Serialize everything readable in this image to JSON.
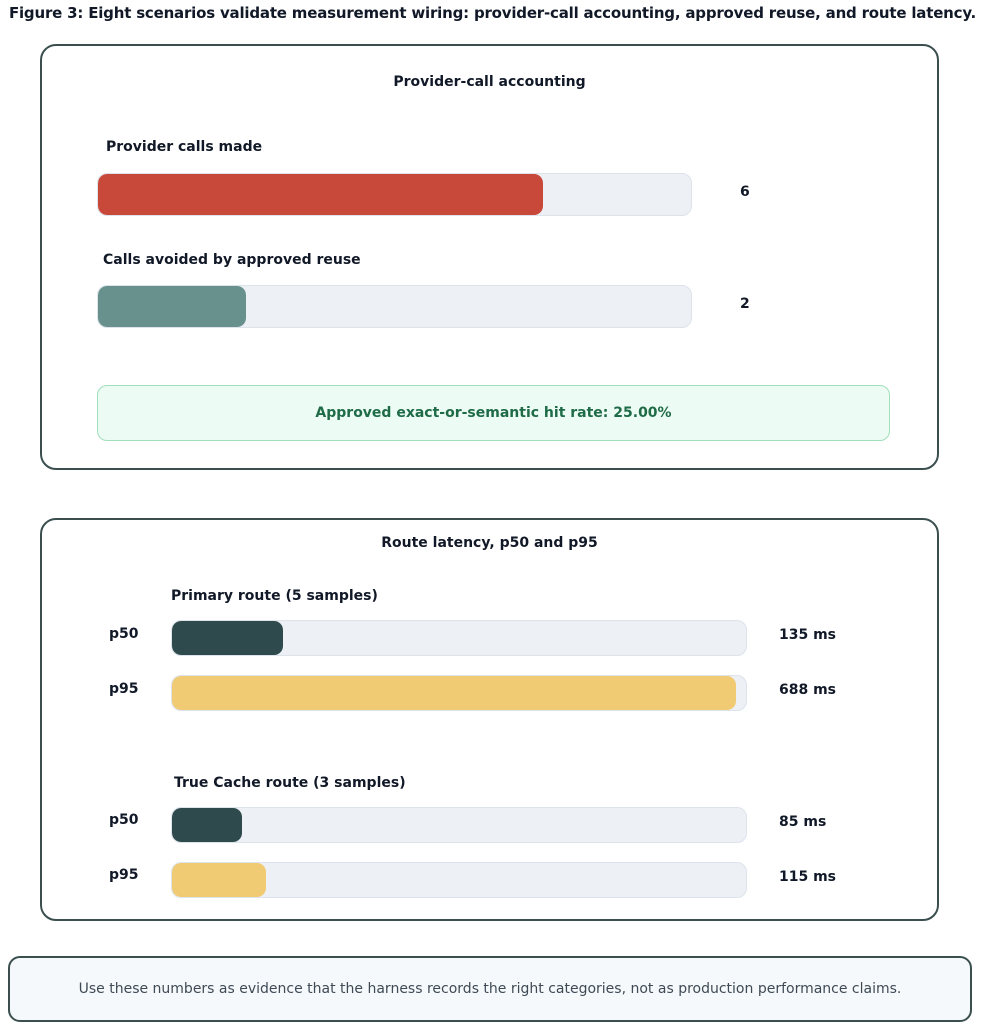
{
  "figure_title": "Figure 3: Eight scenarios validate measurement wiring: provider-call accounting, approved reuse, and route latency.",
  "colors": {
    "provider_calls": "#c8483a",
    "avoided_calls": "#68918d",
    "p50": "#2e4a4c",
    "p95": "#f0cb74"
  },
  "chart_data": [
    {
      "type": "bar",
      "title": "Provider-call accounting",
      "categories": [
        "Provider calls made",
        "Calls avoided by approved reuse"
      ],
      "values": [
        6,
        2
      ],
      "value_labels": [
        "6",
        "2"
      ],
      "xlim": [
        0,
        8
      ],
      "annotation": "Approved exact-or-semantic hit rate: 25.00%"
    },
    {
      "type": "bar",
      "title": "Route latency, p50 and p95",
      "unit": "ms",
      "xlim": [
        0,
        700
      ],
      "groups": [
        {
          "label": "Primary route (5 samples)",
          "series": [
            {
              "name": "p50",
              "value": 135,
              "value_label": "135 ms"
            },
            {
              "name": "p95",
              "value": 688,
              "value_label": "688 ms"
            }
          ]
        },
        {
          "label": "True Cache route (3 samples)",
          "series": [
            {
              "name": "p50",
              "value": 85,
              "value_label": "85 ms"
            },
            {
              "name": "p95",
              "value": 115,
              "value_label": "115 ms"
            }
          ]
        }
      ]
    }
  ],
  "footer_note": "Use these numbers as evidence that the harness records the right categories, not as production performance claims."
}
